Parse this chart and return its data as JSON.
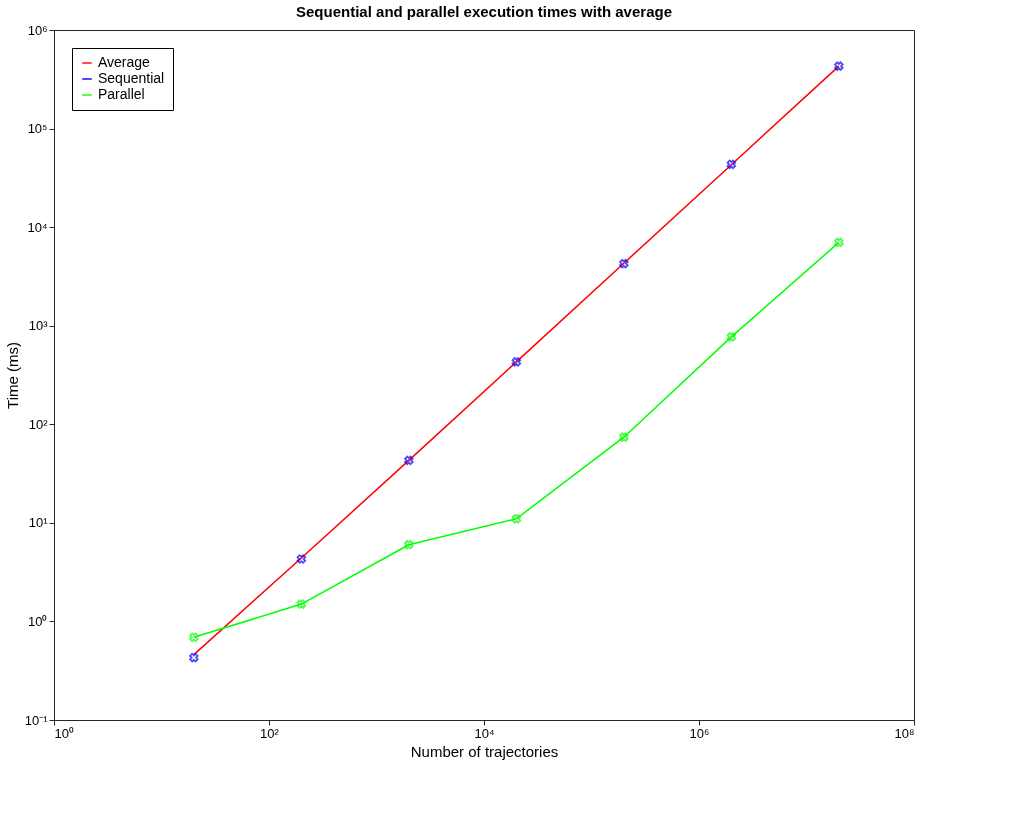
{
  "chart_data": {
    "type": "line",
    "title": "Sequential and parallel execution times with average",
    "xlabel": "Number of trajectories",
    "ylabel": "Time (ms)",
    "log": "xy",
    "grid": false,
    "legend": "top left",
    "x": [
      20,
      200,
      2000,
      20000,
      200000,
      2000000,
      20000000
    ],
    "xlim": [
      1,
      100000000
    ],
    "xticks": [
      {
        "value": 1,
        "label": "10⁰"
      },
      {
        "value": 100,
        "label": "10²"
      },
      {
        "value": 10000,
        "label": "10⁴"
      },
      {
        "value": 1000000,
        "label": "10⁶"
      },
      {
        "value": 100000000,
        "label": "10⁸"
      }
    ],
    "ylim": [
      0.1,
      1000000
    ],
    "yticks": [
      {
        "value": 0.1,
        "label": "10⁻¹"
      },
      {
        "value": 1,
        "label": "10⁰"
      },
      {
        "value": 10,
        "label": "10¹"
      },
      {
        "value": 100,
        "label": "10²"
      },
      {
        "value": 1000,
        "label": "10³"
      },
      {
        "value": 10000,
        "label": "10⁴"
      },
      {
        "value": 100000,
        "label": "10⁵"
      },
      {
        "value": 1000000,
        "label": "10⁶"
      }
    ],
    "series": [
      {
        "name": "Average",
        "color": "#ff0000",
        "type": "line",
        "marker": "none",
        "values": [
          0.46,
          4.4,
          43,
          430,
          4300,
          43000,
          430000
        ]
      },
      {
        "name": "Sequential",
        "color": "#0000ff",
        "type": "scatter",
        "marker": "cross",
        "values": [
          0.43,
          4.3,
          43,
          430,
          4260,
          43400,
          430000
        ]
      },
      {
        "name": "Parallel",
        "color": "#00ff00",
        "type": "line",
        "marker": "cross",
        "values": [
          0.69,
          1.5,
          6.0,
          11,
          74,
          770,
          7000
        ]
      }
    ]
  }
}
